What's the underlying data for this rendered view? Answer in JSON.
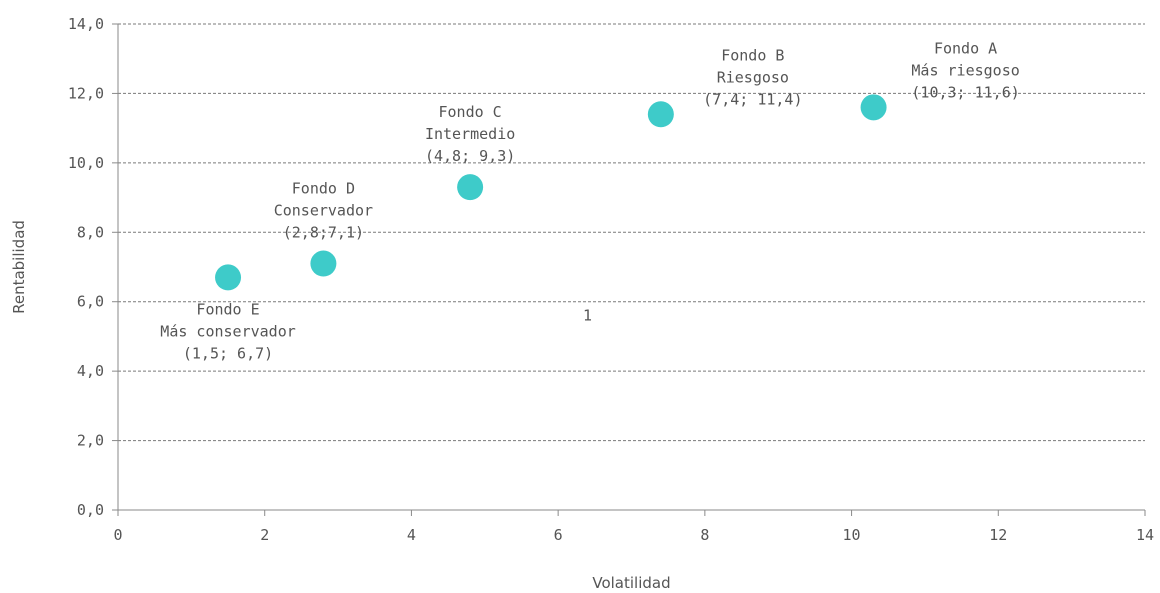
{
  "chart_data": {
    "type": "scatter",
    "title": "",
    "xlabel": "Volatilidad",
    "ylabel": "Rentabilidad",
    "xlim": [
      0,
      14
    ],
    "ylim": [
      0,
      14
    ],
    "x_ticks": [
      "0",
      "2",
      "4",
      "6",
      "8",
      "10",
      "12",
      "14"
    ],
    "y_ticks": [
      "0,0",
      "2,0",
      "4,0",
      "6,0",
      "8,0",
      "10,0",
      "12,0",
      "14,0"
    ],
    "grid": "horizontal dashed",
    "marker_color": "#3ecbc9",
    "points": [
      {
        "x": 1.5,
        "y": 6.7,
        "lines": [
          "Fondo E",
          "Más conservador",
          "(1,5; 6,7)"
        ],
        "label_pos": "below"
      },
      {
        "x": 2.8,
        "y": 7.1,
        "lines": [
          "Fondo D",
          "Conservador",
          "(2,8;7,1)"
        ],
        "label_pos": "above"
      },
      {
        "x": 4.8,
        "y": 9.3,
        "lines": [
          "Fondo C",
          "Intermedio",
          "(4,8; 9,3)"
        ],
        "label_pos": "above"
      },
      {
        "x": 7.4,
        "y": 11.4,
        "lines": [
          "Fondo B",
          "Riesgoso",
          "(7,4; 11,4)"
        ],
        "label_pos": "above-right"
      },
      {
        "x": 10.3,
        "y": 11.6,
        "lines": [
          "Fondo A",
          "Más riesgoso",
          "(10,3; 11,6)"
        ],
        "label_pos": "above-right"
      }
    ],
    "annotations": [
      {
        "text": "1",
        "x": 6.4,
        "y": 5.6
      }
    ]
  }
}
